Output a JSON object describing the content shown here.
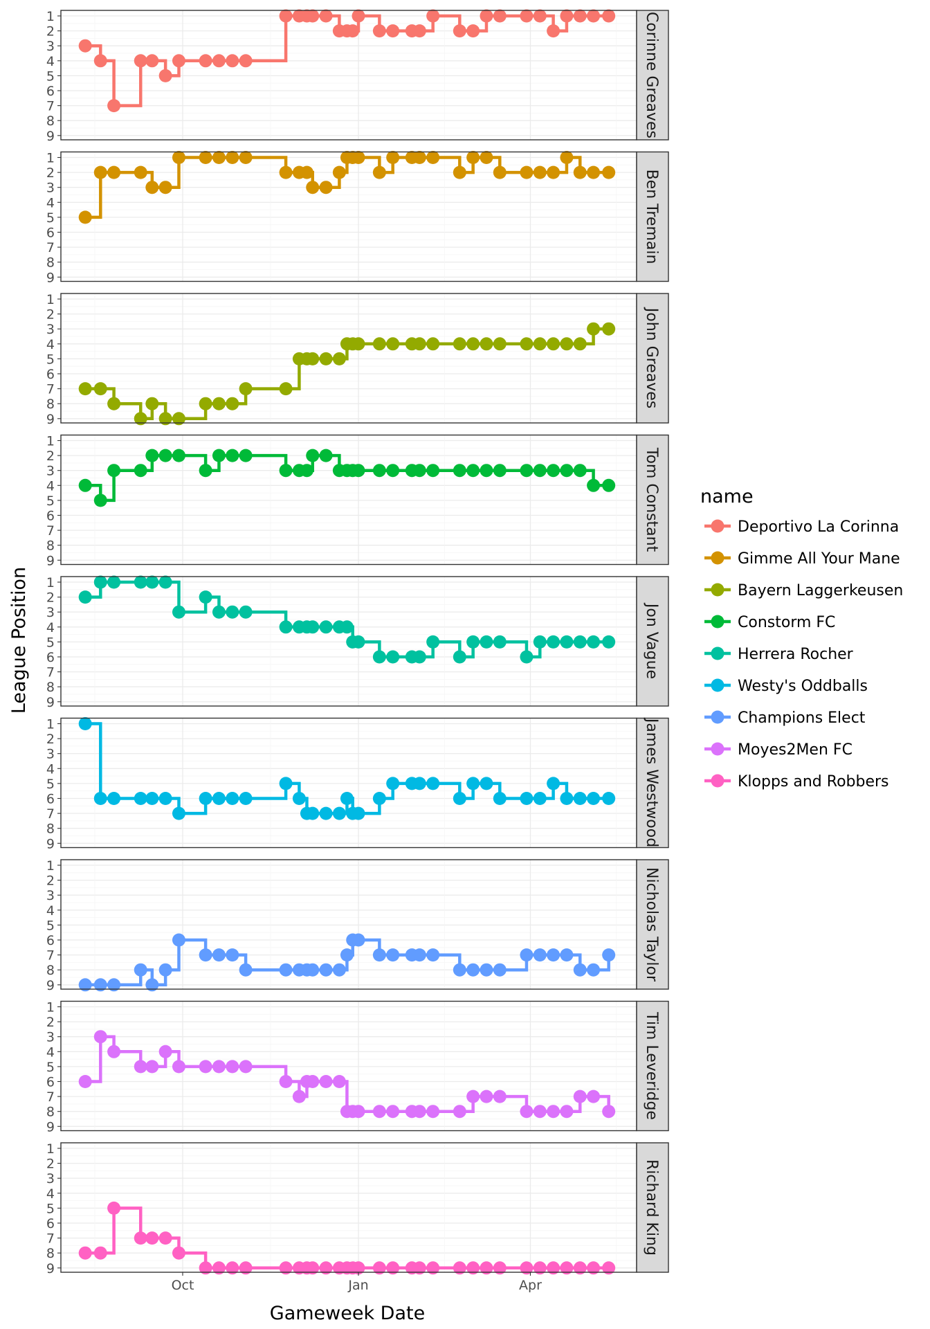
{
  "chart_data": {
    "type": "line",
    "step": true,
    "xlabel": "Gameweek Date",
    "ylabel": "League Position",
    "x_ticks": [
      "Oct",
      "Jan",
      "Apr"
    ],
    "y_ticks": [
      "1",
      "2",
      "3",
      "4",
      "5",
      "6",
      "7",
      "8",
      "9"
    ],
    "ylim": [
      9,
      1
    ],
    "legend_title": "name",
    "legend_position": "right",
    "x_dates": [
      "2018-08-11",
      "2018-08-19",
      "2018-08-26",
      "2018-09-02",
      "2018-09-15",
      "2018-09-22",
      "2018-09-29",
      "2018-10-06",
      "2018-10-20",
      "2018-10-27",
      "2018-11-03",
      "2018-11-10",
      "2018-11-24",
      "2018-12-01",
      "2018-12-05",
      "2018-12-08",
      "2018-12-15",
      "2018-12-22",
      "2018-12-26",
      "2018-12-29",
      "2019-01-02",
      "2019-01-12",
      "2019-01-19",
      "2019-01-29",
      "2019-02-02",
      "2019-02-09",
      "2019-02-23",
      "2019-02-27",
      "2019-03-02",
      "2019-03-09",
      "2019-03-16",
      "2019-03-30",
      "2019-04-06",
      "2019-04-13",
      "2019-04-20",
      "2019-04-27",
      "2019-05-04",
      "2019-05-12"
    ],
    "x_points": [
      "2018-08-11",
      "2018-08-19",
      "2018-08-26",
      "2018-09-09",
      "2018-09-15",
      "2018-09-22",
      "2018-09-29",
      "2018-10-13",
      "2018-10-20",
      "2018-10-27",
      "2018-11-03",
      "2018-11-24",
      "2018-12-01",
      "2018-12-05",
      "2018-12-08",
      "2018-12-15",
      "2018-12-22",
      "2018-12-26",
      "2018-12-29",
      "2019-01-01",
      "2019-01-12",
      "2019-01-19",
      "2019-01-29",
      "2019-02-02",
      "2019-02-09",
      "2019-02-23",
      "2019-03-02",
      "2019-03-09",
      "2019-03-16",
      "2019-03-30",
      "2019-04-06",
      "2019-04-13",
      "2019-04-20",
      "2019-04-27",
      "2019-05-04",
      "2019-05-12"
    ],
    "series": [
      {
        "manager": "Corinne Greaves",
        "name": "Deportivo La Corinna",
        "color": "#F8766D",
        "values": [
          3,
          4,
          7,
          4,
          4,
          5,
          4,
          4,
          4,
          4,
          4,
          1,
          1,
          1,
          1,
          1,
          2,
          2,
          2,
          1,
          2,
          2,
          2,
          2,
          1,
          2,
          2,
          1,
          1,
          1,
          1,
          2,
          1,
          1,
          1,
          1
        ]
      },
      {
        "manager": "Ben Tremain",
        "name": "Gimme All Your Mane",
        "color": "#D39200",
        "values": [
          5,
          2,
          2,
          2,
          3,
          3,
          1,
          1,
          1,
          1,
          1,
          2,
          2,
          2,
          3,
          3,
          2,
          1,
          1,
          1,
          2,
          1,
          1,
          1,
          1,
          2,
          1,
          1,
          2,
          2,
          2,
          2,
          1,
          2,
          2,
          2
        ]
      },
      {
        "manager": "John Greaves",
        "name": "Bayern Laggerkeusen",
        "color": "#93AA00",
        "values": [
          7,
          7,
          8,
          9,
          8,
          9,
          9,
          8,
          8,
          8,
          7,
          7,
          5,
          5,
          5,
          5,
          5,
          4,
          4,
          4,
          4,
          4,
          4,
          4,
          4,
          4,
          4,
          4,
          4,
          4,
          4,
          4,
          4,
          4,
          3,
          3
        ]
      },
      {
        "manager": "Tom Constant",
        "name": "Constorm FC",
        "color": "#00BA38",
        "values": [
          4,
          5,
          3,
          3,
          2,
          2,
          2,
          3,
          2,
          2,
          2,
          3,
          3,
          3,
          2,
          2,
          3,
          3,
          3,
          3,
          3,
          3,
          3,
          3,
          3,
          3,
          3,
          3,
          3,
          3,
          3,
          3,
          3,
          3,
          4,
          4
        ]
      },
      {
        "manager": "Jon Vague",
        "name": "Herrera Rocher",
        "color": "#00C19F",
        "values": [
          2,
          1,
          1,
          1,
          1,
          1,
          3,
          2,
          3,
          3,
          3,
          4,
          4,
          4,
          4,
          4,
          4,
          4,
          5,
          5,
          6,
          6,
          6,
          6,
          5,
          6,
          5,
          5,
          5,
          6,
          5,
          5,
          5,
          5,
          5,
          5
        ]
      },
      {
        "manager": "James Westwood",
        "name": "Westy's Oddballs",
        "color": "#00B9E3",
        "values": [
          1,
          6,
          6,
          6,
          6,
          6,
          7,
          6,
          6,
          6,
          6,
          5,
          6,
          7,
          7,
          7,
          7,
          6,
          7,
          7,
          6,
          5,
          5,
          5,
          5,
          6,
          5,
          5,
          6,
          6,
          6,
          5,
          6,
          6,
          6,
          6
        ]
      },
      {
        "manager": "Nicholas Taylor",
        "name": "Champions Elect",
        "color": "#619CFF",
        "values": [
          9,
          9,
          9,
          8,
          9,
          8,
          6,
          7,
          7,
          7,
          8,
          8,
          8,
          8,
          8,
          8,
          8,
          7,
          6,
          6,
          7,
          7,
          7,
          7,
          7,
          8,
          8,
          8,
          8,
          7,
          7,
          7,
          7,
          8,
          8,
          7
        ]
      },
      {
        "manager": "Tim Leveridge",
        "name": "Moyes2Men FC",
        "color": "#DB72FB",
        "values": [
          6,
          3,
          4,
          5,
          5,
          4,
          5,
          5,
          5,
          5,
          5,
          6,
          7,
          6,
          6,
          6,
          6,
          8,
          8,
          8,
          8,
          8,
          8,
          8,
          8,
          8,
          7,
          7,
          7,
          8,
          8,
          8,
          8,
          7,
          7,
          8
        ]
      },
      {
        "manager": "Richard King",
        "name": "Klopps and Robbers",
        "color": "#FF61C3",
        "values": [
          8,
          8,
          5,
          7,
          7,
          7,
          8,
          9,
          9,
          9,
          9,
          9,
          9,
          9,
          9,
          9,
          9,
          9,
          9,
          9,
          9,
          9,
          9,
          9,
          9,
          9,
          9,
          9,
          9,
          9,
          9,
          9,
          9,
          9,
          9,
          9
        ]
      }
    ]
  }
}
